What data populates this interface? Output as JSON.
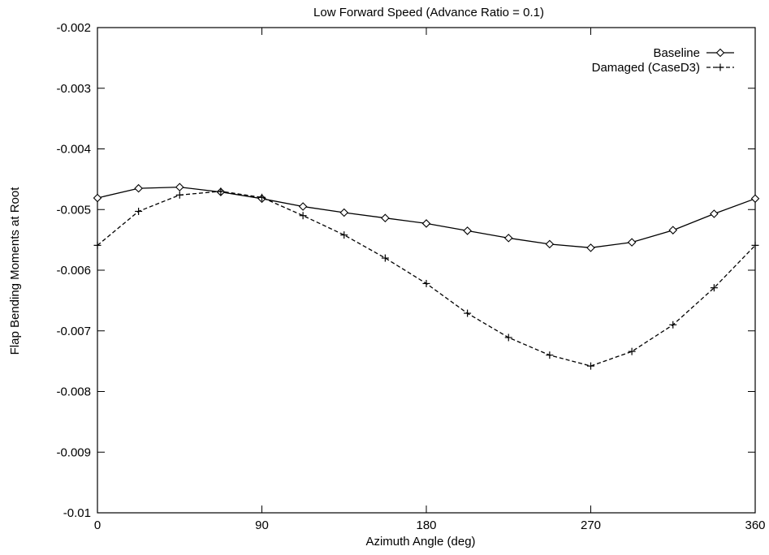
{
  "chart_data": {
    "type": "line",
    "title": "Low Forward Speed (Advance Ratio = 0.1)",
    "xlabel": "Azimuth Angle (deg)",
    "ylabel": "Flap Bending Moments at Root",
    "xlim": [
      0,
      360
    ],
    "ylim": [
      -0.01,
      -0.002
    ],
    "x_ticks": [
      0,
      90,
      180,
      270,
      360
    ],
    "x_tick_labels": [
      "0",
      "90",
      "180",
      "270",
      "360"
    ],
    "y_ticks": [
      -0.002,
      -0.003,
      -0.004,
      -0.005,
      -0.006,
      -0.007,
      -0.008,
      -0.009,
      -0.01
    ],
    "y_tick_labels": [
      "-0.002",
      "-0.003",
      "-0.004",
      "-0.005",
      "-0.006",
      "-0.007",
      "-0.008",
      "-0.009",
      "-0.01"
    ],
    "grid": false,
    "legend_position": "top-right",
    "x": [
      0,
      22.5,
      45,
      67.5,
      90,
      112.5,
      135,
      157.5,
      180,
      202.5,
      225,
      247.5,
      270,
      292.5,
      315,
      337.5,
      360
    ],
    "series": [
      {
        "name": "Baseline",
        "marker": "diamond",
        "line_style": "solid",
        "color": "#000000",
        "values": [
          -0.00481,
          -0.00465,
          -0.00463,
          -0.00471,
          -0.00482,
          -0.00495,
          -0.00505,
          -0.00514,
          -0.00523,
          -0.00535,
          -0.00547,
          -0.00557,
          -0.00563,
          -0.00554,
          -0.00534,
          -0.00507,
          -0.00482
        ]
      },
      {
        "name": "Damaged (CaseD3)",
        "marker": "plus",
        "line_style": "dashed",
        "color": "#000000",
        "values": [
          -0.00559,
          -0.00503,
          -0.00476,
          -0.0047,
          -0.0048,
          -0.0051,
          -0.00542,
          -0.0058,
          -0.00622,
          -0.00671,
          -0.00711,
          -0.0074,
          -0.00758,
          -0.00734,
          -0.0069,
          -0.00629,
          -0.00559
        ]
      }
    ]
  }
}
